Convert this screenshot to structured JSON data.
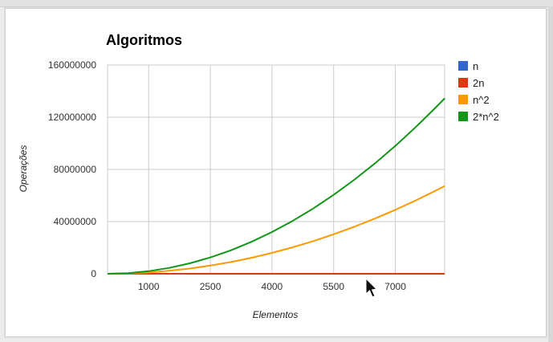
{
  "chart_data": {
    "type": "line",
    "title": "Algoritmos",
    "xlabel": "Elementos",
    "ylabel": "Operações",
    "x": [
      0,
      500,
      1000,
      1500,
      2000,
      2500,
      3000,
      3500,
      4000,
      4500,
      5000,
      5500,
      6000,
      6500,
      7000,
      7500,
      8000,
      8200
    ],
    "x_ticks": [
      1000,
      2500,
      4000,
      5500,
      7000
    ],
    "y_ticks": [
      0,
      40000000,
      80000000,
      120000000,
      160000000
    ],
    "xlim": [
      0,
      8200
    ],
    "ylim": [
      0,
      160000000
    ],
    "grid": true,
    "legend_position": "right",
    "series": [
      {
        "name": "n",
        "color": "#3366cc",
        "values": [
          0,
          500,
          1000,
          1500,
          2000,
          2500,
          3000,
          3500,
          4000,
          4500,
          5000,
          5500,
          6000,
          6500,
          7000,
          7500,
          8000,
          8200
        ]
      },
      {
        "name": "2n",
        "color": "#dc3912",
        "values": [
          0,
          1000,
          2000,
          3000,
          4000,
          5000,
          6000,
          7000,
          8000,
          9000,
          10000,
          11000,
          12000,
          13000,
          14000,
          15000,
          16000,
          16400
        ]
      },
      {
        "name": "n^2",
        "color": "#ff9900",
        "values": [
          0,
          250000,
          1000000,
          2250000,
          4000000,
          6250000,
          9000000,
          12250000,
          16000000,
          20250000,
          25000000,
          30250000,
          36000000,
          42250000,
          49000000,
          56250000,
          64000000,
          67240000
        ]
      },
      {
        "name": "2*n^2",
        "color": "#109618",
        "values": [
          0,
          500000,
          2000000,
          4500000,
          8000000,
          12500000,
          18000000,
          24500000,
          32000000,
          40500000,
          50000000,
          60500000,
          72000000,
          84500000,
          98000000,
          112500000,
          128000000,
          134480000
        ]
      }
    ]
  }
}
